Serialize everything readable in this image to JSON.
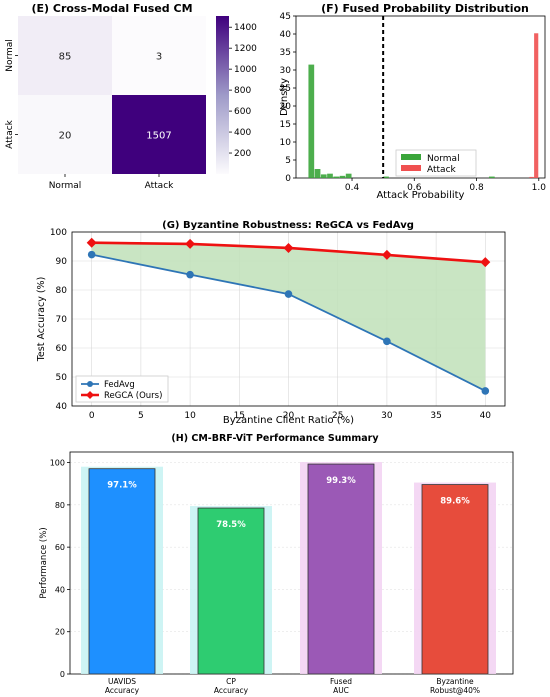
{
  "colors": {
    "normal_green": "#3aa53a",
    "attack_red": "#f05050",
    "fedavg_blue": "#2e75b6",
    "regca_red": "#ee1111",
    "fill_green": "#bfe0b8",
    "bar_uavids": "#1e90ff",
    "bar_cp": "#2ecc71",
    "bar_fused": "#9b59b6",
    "bar_byz": "#e74c3c",
    "cm_dark": "#3f007d",
    "cm_light": "#fcfbfd"
  },
  "chart_data": [
    {
      "type": "heatmap",
      "title": "(E) Cross-Modal Fused CM",
      "row_labels": [
        "Normal",
        "Attack"
      ],
      "col_labels": [
        "Normal",
        "Attack"
      ],
      "values": [
        [
          85,
          3
        ],
        [
          20,
          1507
        ]
      ],
      "colorbar_ticks": [
        "200",
        "400",
        "600",
        "800",
        "1000",
        "1200",
        "1400"
      ],
      "colorbar_range": [
        0,
        1507
      ]
    },
    {
      "type": "bar",
      "title": "(F) Fused Probability Distribution",
      "xlabel": "Attack Probability",
      "ylabel": "Density",
      "xlim": [
        0.22,
        1.02
      ],
      "ylim": [
        0,
        45
      ],
      "x_ticks": [
        "0.4",
        "0.6",
        "0.8",
        "1.0"
      ],
      "y_ticks": [
        "0",
        "5",
        "10",
        "15",
        "20",
        "25",
        "30",
        "35",
        "40",
        "45"
      ],
      "threshold": 0.5,
      "legend": [
        "Normal",
        "Attack"
      ],
      "series": [
        {
          "name": "Normal",
          "bins": [
            [
              0.26,
              0.28,
              31.5
            ],
            [
              0.28,
              0.3,
              2.5
            ],
            [
              0.3,
              0.32,
              1.0
            ],
            [
              0.32,
              0.34,
              1.2
            ],
            [
              0.34,
              0.36,
              0.4
            ],
            [
              0.36,
              0.38,
              0.6
            ],
            [
              0.38,
              0.4,
              1.2
            ],
            [
              0.5,
              0.52,
              0.4
            ],
            [
              0.84,
              0.86,
              0.4
            ]
          ]
        },
        {
          "name": "Attack",
          "bins": [
            [
              0.97,
              0.985,
              0.3
            ],
            [
              0.985,
              1.0,
              40.2
            ]
          ]
        }
      ]
    },
    {
      "type": "line",
      "title": "(G) Byzantine Robustness: ReGCA vs FedAvg",
      "xlabel": "Byzantine Client Ratio (%)",
      "ylabel": "Test Accuracy (%)",
      "xlim": [
        -2,
        42
      ],
      "ylim": [
        40,
        100
      ],
      "x_ticks": [
        "0",
        "5",
        "10",
        "15",
        "20",
        "25",
        "30",
        "35",
        "40"
      ],
      "y_ticks": [
        "40",
        "50",
        "60",
        "70",
        "80",
        "90",
        "100"
      ],
      "x": [
        0,
        10,
        20,
        30,
        40
      ],
      "series": [
        {
          "name": "FedAvg",
          "values": [
            92.2,
            85.3,
            78.6,
            62.3,
            45.2
          ]
        },
        {
          "name": "ReGCA (Ours)",
          "values": [
            96.3,
            95.9,
            94.5,
            92.1,
            89.6
          ]
        }
      ],
      "grid": true,
      "legend_position": "lower-left"
    },
    {
      "type": "bar",
      "title": "(H) CM-BRF-ViT Performance Summary",
      "ylabel": "Performance (%)",
      "ylim": [
        0,
        105
      ],
      "y_ticks": [
        "0",
        "20",
        "40",
        "60",
        "80",
        "100"
      ],
      "categories": [
        [
          "UAVIDS",
          "Accuracy"
        ],
        [
          "CP",
          "Accuracy"
        ],
        [
          "Fused",
          "AUC"
        ],
        [
          "Byzantine",
          "Robust@40%"
        ]
      ],
      "values": [
        97.1,
        78.5,
        99.3,
        89.6
      ],
      "labels": [
        "97.1%",
        "78.5%",
        "99.3%",
        "89.6%"
      ],
      "grid": true
    }
  ]
}
